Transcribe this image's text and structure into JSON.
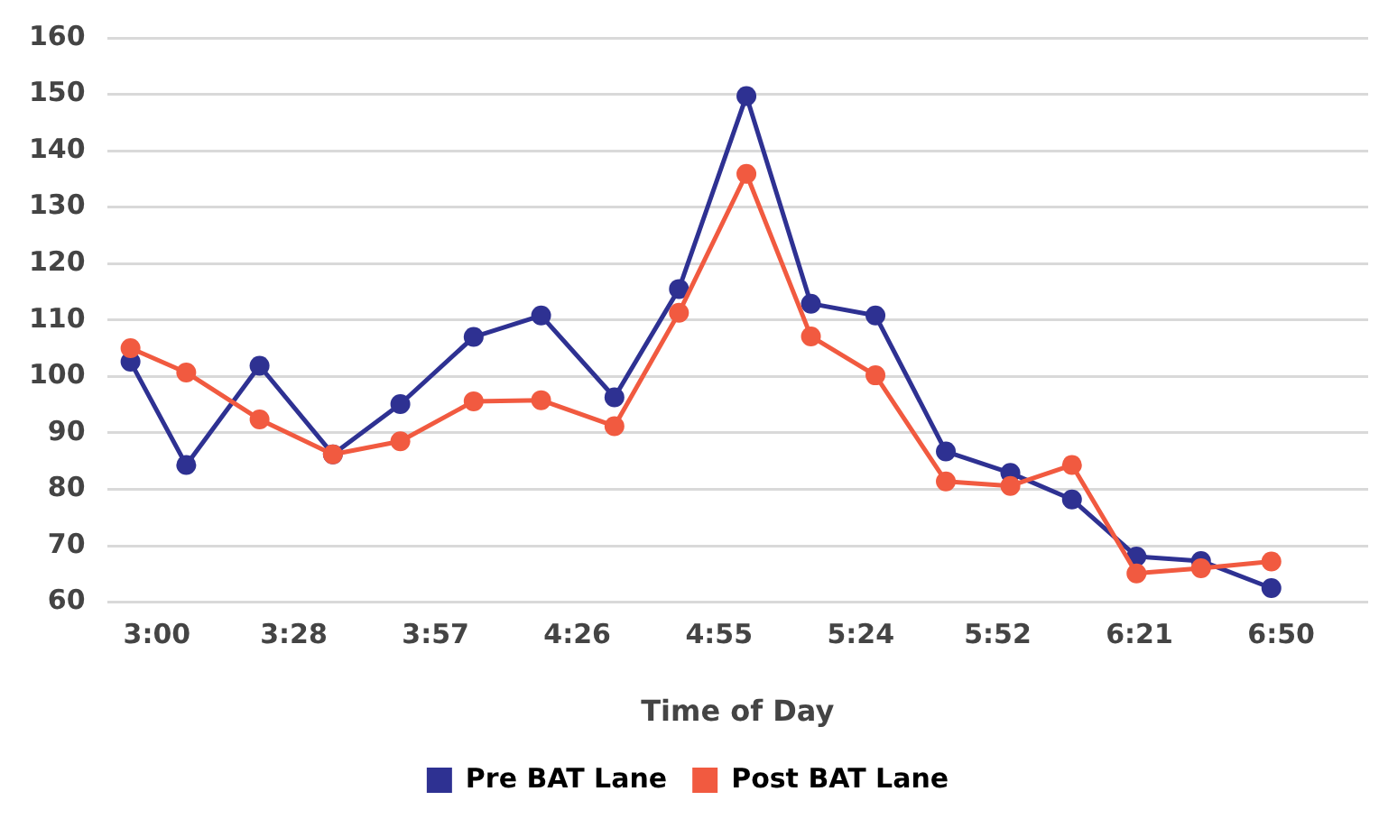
{
  "chart_data": {
    "type": "line",
    "xlabel": "Time of Day",
    "x": [
      2.91,
      3.1,
      3.35,
      3.6,
      3.83,
      4.08,
      4.31,
      4.56,
      4.78,
      5.01,
      5.23,
      5.45,
      5.69,
      5.91,
      6.12,
      6.34,
      6.56,
      6.8
    ],
    "series": [
      {
        "name": "Pre BAT Lane",
        "color": "#2e3192",
        "values": [
          102.6,
          84.3,
          101.9,
          86.2,
          95.1,
          107,
          110.8,
          96.3,
          115.5,
          149.7,
          112.9,
          110.8,
          86.7,
          82.9,
          78.2,
          68.1,
          67.3,
          62.5
        ]
      },
      {
        "name": "Post BAT Lane",
        "color": "#f15a40",
        "values": [
          105,
          100.7,
          92.4,
          86.2,
          88.5,
          95.6,
          95.8,
          91.2,
          111.3,
          135.9,
          107.1,
          100.2,
          81.4,
          80.6,
          84.3,
          65.1,
          66,
          67.2
        ]
      }
    ],
    "xlim": [
      2.83,
      7.13
    ],
    "xticks": [
      {
        "value": 3,
        "label": "3:00"
      },
      {
        "value": 3.4667,
        "label": "3:28"
      },
      {
        "value": 3.95,
        "label": "3:57"
      },
      {
        "value": 4.4333,
        "label": "4:26"
      },
      {
        "value": 4.9167,
        "label": "4:55"
      },
      {
        "value": 5.4,
        "label": "5:24"
      },
      {
        "value": 5.8667,
        "label": "5:52"
      },
      {
        "value": 6.35,
        "label": "6:21"
      },
      {
        "value": 6.8333,
        "label": "6:50"
      }
    ],
    "ylim": [
      60,
      160
    ],
    "yticks": [
      60,
      70,
      80,
      90,
      100,
      110,
      120,
      130,
      140,
      150,
      160
    ],
    "grid": "y",
    "legend": "bottom",
    "marker": "circle",
    "line_style": "solid"
  }
}
